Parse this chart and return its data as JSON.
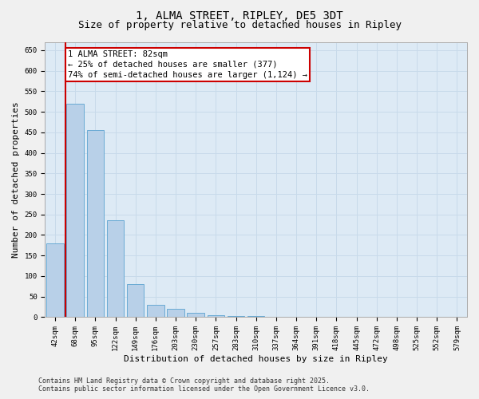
{
  "title_line1": "1, ALMA STREET, RIPLEY, DE5 3DT",
  "title_line2": "Size of property relative to detached houses in Ripley",
  "xlabel": "Distribution of detached houses by size in Ripley",
  "ylabel": "Number of detached properties",
  "categories": [
    "42sqm",
    "68sqm",
    "95sqm",
    "122sqm",
    "149sqm",
    "176sqm",
    "203sqm",
    "230sqm",
    "257sqm",
    "283sqm",
    "310sqm",
    "337sqm",
    "364sqm",
    "391sqm",
    "418sqm",
    "445sqm",
    "472sqm",
    "498sqm",
    "525sqm",
    "552sqm",
    "579sqm"
  ],
  "values": [
    180,
    520,
    455,
    235,
    80,
    30,
    20,
    10,
    5,
    2,
    2,
    0,
    0,
    0,
    0,
    0,
    0,
    1,
    0,
    0,
    1
  ],
  "bar_color": "#b8d0e8",
  "bar_edge_color": "#6aaad4",
  "annotation_box_text": "1 ALMA STREET: 82sqm\n← 25% of detached houses are smaller (377)\n74% of semi-detached houses are larger (1,124) →",
  "annotation_box_color": "#ffffff",
  "annotation_box_edge_color": "#cc0000",
  "vline_color": "#cc0000",
  "vline_bar_index": 1,
  "ylim": [
    0,
    670
  ],
  "yticks": [
    0,
    50,
    100,
    150,
    200,
    250,
    300,
    350,
    400,
    450,
    500,
    550,
    600,
    650
  ],
  "grid_color": "#c8daea",
  "background_color": "#ddeaf5",
  "fig_background_color": "#f0f0f0",
  "footer_line1": "Contains HM Land Registry data © Crown copyright and database right 2025.",
  "footer_line2": "Contains public sector information licensed under the Open Government Licence v3.0.",
  "title_fontsize": 10,
  "subtitle_fontsize": 9,
  "axis_label_fontsize": 8,
  "tick_fontsize": 6.5,
  "annotation_fontsize": 7.5,
  "footer_fontsize": 6
}
